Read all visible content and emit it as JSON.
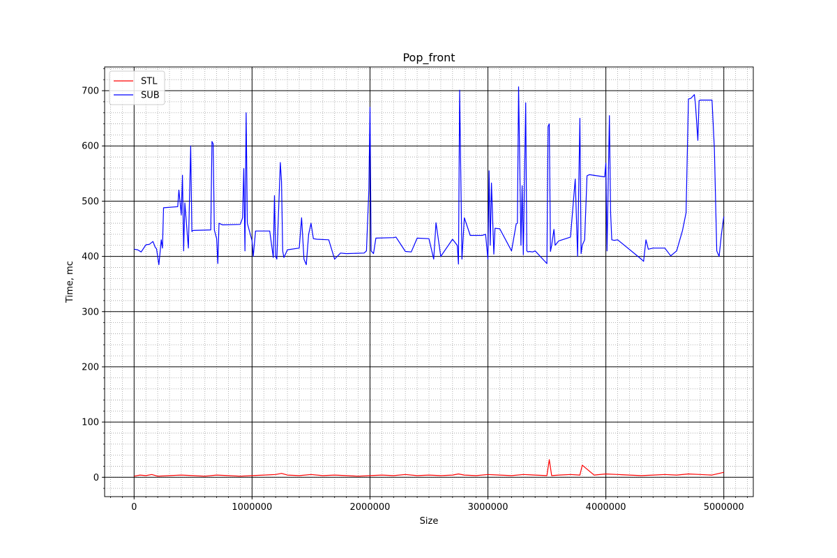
{
  "chart_data": {
    "type": "line",
    "title": "Pop_front",
    "xlabel": "Size",
    "ylabel": "Time, mc",
    "xlim": [
      -250000,
      5250000
    ],
    "ylim": [
      -35,
      743
    ],
    "x_ticks": [
      0,
      1000000,
      2000000,
      3000000,
      4000000,
      5000000
    ],
    "x_tick_labels": [
      "0",
      "1000000",
      "2000000",
      "3000000",
      "4000000",
      "5000000"
    ],
    "y_ticks": [
      0,
      100,
      200,
      300,
      400,
      500,
      600,
      700
    ],
    "y_tick_labels": [
      "0",
      "100",
      "200",
      "300",
      "400",
      "500",
      "600",
      "700"
    ],
    "x_minor_step": 100000,
    "y_minor_step": 20,
    "grid": {
      "major": true,
      "minor": true
    },
    "legend_position": "top-left",
    "series": [
      {
        "name": "STL",
        "color": "#ff0000",
        "x": [
          0,
          50000,
          100000,
          150000,
          200000,
          300000,
          400000,
          500000,
          600000,
          700000,
          800000,
          900000,
          1000000,
          1100000,
          1200000,
          1250000,
          1300000,
          1400000,
          1500000,
          1600000,
          1700000,
          1800000,
          1900000,
          2000000,
          2100000,
          2200000,
          2300000,
          2400000,
          2500000,
          2600000,
          2700000,
          2750000,
          2800000,
          2900000,
          3000000,
          3100000,
          3200000,
          3300000,
          3400000,
          3500000,
          3520000,
          3540000,
          3600000,
          3700000,
          3780000,
          3800000,
          3900000,
          4000000,
          4100000,
          4200000,
          4300000,
          4400000,
          4500000,
          4600000,
          4700000,
          4800000,
          4900000,
          5000000
        ],
        "values": [
          2,
          4,
          3,
          5,
          2,
          3,
          4,
          3,
          2,
          4,
          3,
          2,
          3,
          4,
          5,
          7,
          4,
          3,
          5,
          3,
          4,
          3,
          2,
          3,
          4,
          3,
          5,
          3,
          4,
          3,
          4,
          6,
          4,
          3,
          5,
          4,
          3,
          5,
          4,
          3,
          32,
          3,
          4,
          5,
          4,
          22,
          4,
          6,
          5,
          4,
          3,
          4,
          5,
          4,
          6,
          5,
          4,
          9
        ]
      },
      {
        "name": "SUB",
        "color": "#0000ff",
        "x": [
          0,
          30000,
          60000,
          100000,
          130000,
          160000,
          180000,
          190000,
          210000,
          230000,
          240000,
          250000,
          370000,
          380000,
          400000,
          410000,
          420000,
          430000,
          460000,
          480000,
          490000,
          500000,
          650000,
          660000,
          670000,
          680000,
          700000,
          710000,
          720000,
          750000,
          900000,
          920000,
          930000,
          940000,
          950000,
          960000,
          1000000,
          1010000,
          1030000,
          1150000,
          1180000,
          1190000,
          1200000,
          1210000,
          1240000,
          1250000,
          1260000,
          1270000,
          1300000,
          1400000,
          1420000,
          1440000,
          1460000,
          1480000,
          1500000,
          1520000,
          1550000,
          1650000,
          1700000,
          1750000,
          1800000,
          1950000,
          1970000,
          1990000,
          2000000,
          2010000,
          2030000,
          2050000,
          2200000,
          2220000,
          2300000,
          2350000,
          2400000,
          2500000,
          2540000,
          2560000,
          2600000,
          2700000,
          2740000,
          2750000,
          2760000,
          2780000,
          2800000,
          2850000,
          2950000,
          2980000,
          3000000,
          3010000,
          3020000,
          3030000,
          3050000,
          3060000,
          3100000,
          3200000,
          3240000,
          3250000,
          3260000,
          3280000,
          3290000,
          3300000,
          3320000,
          3330000,
          3340000,
          3350000,
          3380000,
          3400000,
          3500000,
          3510000,
          3520000,
          3530000,
          3540000,
          3560000,
          3570000,
          3600000,
          3700000,
          3740000,
          3760000,
          3780000,
          3790000,
          3800000,
          3820000,
          3840000,
          3850000,
          3860000,
          3990000,
          4000000,
          4010000,
          4030000,
          4040000,
          4050000,
          4070000,
          4100000,
          4300000,
          4320000,
          4340000,
          4360000,
          4400000,
          4500000,
          4550000,
          4600000,
          4650000,
          4680000,
          4700000,
          4720000,
          4750000,
          4760000,
          4780000,
          4790000,
          4800000,
          4900000,
          4920000,
          4940000,
          4960000,
          4980000,
          5000000
        ],
        "values": [
          413,
          412,
          408,
          421,
          422,
          427,
          416,
          414,
          385,
          430,
          415,
          488,
          490,
          520,
          475,
          547,
          410,
          497,
          415,
          600,
          445,
          447,
          448,
          608,
          604,
          448,
          432,
          387,
          460,
          457,
          458,
          470,
          559,
          410,
          660,
          460,
          428,
          400,
          446,
          446,
          398,
          510,
          400,
          395,
          570,
          535,
          410,
          398,
          412,
          415,
          470,
          395,
          385,
          440,
          460,
          432,
          431,
          430,
          395,
          406,
          405,
          406,
          410,
          520,
          670,
          410,
          405,
          433,
          434,
          435,
          409,
          408,
          433,
          432,
          395,
          461,
          400,
          431,
          420,
          386,
          701,
          395,
          470,
          438,
          438,
          440,
          395,
          555,
          420,
          533,
          404,
          451,
          450,
          410,
          459,
          460,
          707,
          420,
          528,
          403,
          678,
          410,
          408,
          409,
          408,
          410,
          387,
          635,
          640,
          409,
          420,
          449,
          420,
          428,
          435,
          540,
          400,
          650,
          405,
          420,
          430,
          546,
          547,
          548,
          544,
          569,
          410,
          655,
          480,
          430,
          429,
          430,
          395,
          391,
          430,
          413,
          415,
          415,
          401,
          410,
          447,
          479,
          685,
          686,
          693,
          675,
          610,
          682,
          683,
          683,
          595,
          410,
          400,
          440,
          472
        ]
      }
    ]
  }
}
